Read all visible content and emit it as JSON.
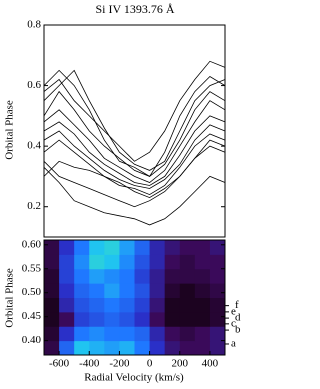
{
  "chart_data": [
    {
      "type": "line",
      "title": "Si IV     1393.76 Å",
      "ylabel": "Orbital Phase",
      "x": [
        -700,
        -600,
        -500,
        -400,
        -300,
        -200,
        -100,
        0,
        100,
        200,
        300,
        400,
        500
      ],
      "xlim": [
        -700,
        500
      ],
      "ylim": [
        0.1,
        0.8
      ],
      "yticks": [
        0.2,
        0.4,
        0.6,
        0.8
      ],
      "color": "#000000",
      "series": [
        {
          "values": [
            0.58,
            0.62,
            0.55,
            0.5,
            0.45,
            0.4,
            0.35,
            0.38,
            0.45,
            0.55,
            0.62,
            0.68,
            0.66
          ]
        },
        {
          "values": [
            0.6,
            0.65,
            0.6,
            0.52,
            0.42,
            0.35,
            0.33,
            0.3,
            0.38,
            0.5,
            0.58,
            0.63,
            0.6
          ]
        },
        {
          "values": [
            0.5,
            0.58,
            0.52,
            0.45,
            0.4,
            0.36,
            0.32,
            0.3,
            0.34,
            0.42,
            0.52,
            0.58,
            0.55
          ]
        },
        {
          "values": [
            0.48,
            0.52,
            0.47,
            0.42,
            0.36,
            0.33,
            0.3,
            0.28,
            0.32,
            0.4,
            0.48,
            0.55,
            0.52
          ]
        },
        {
          "values": [
            0.45,
            0.48,
            0.44,
            0.38,
            0.34,
            0.31,
            0.28,
            0.27,
            0.3,
            0.37,
            0.45,
            0.5,
            0.48
          ]
        },
        {
          "values": [
            0.42,
            0.45,
            0.4,
            0.36,
            0.32,
            0.29,
            0.27,
            0.26,
            0.29,
            0.34,
            0.42,
            0.47,
            0.45
          ]
        },
        {
          "values": [
            0.38,
            0.42,
            0.38,
            0.34,
            0.3,
            0.27,
            0.26,
            0.24,
            0.27,
            0.33,
            0.4,
            0.44,
            0.42
          ]
        },
        {
          "values": [
            0.35,
            0.3,
            0.28,
            0.26,
            0.24,
            0.22,
            0.2,
            0.22,
            0.25,
            0.3,
            0.36,
            0.4,
            0.38
          ]
        },
        {
          "values": [
            0.33,
            0.28,
            0.22,
            0.2,
            0.18,
            0.17,
            0.16,
            0.14,
            0.16,
            0.2,
            0.25,
            0.3,
            0.28
          ]
        },
        {
          "values": [
            0.55,
            0.6,
            0.65,
            0.55,
            0.46,
            0.38,
            0.34,
            0.32,
            0.35,
            0.45,
            0.55,
            0.6,
            0.62
          ]
        },
        {
          "values": [
            0.3,
            0.35,
            0.33,
            0.32,
            0.3,
            0.28,
            0.25,
            0.23,
            0.26,
            0.3,
            0.36,
            0.42,
            0.4
          ]
        }
      ]
    },
    {
      "type": "heatmap",
      "ylabel": "Orbital Phase",
      "xlabel": "Radial Velocity (km/s)",
      "xlim": [
        -700,
        500
      ],
      "ylim": [
        0.37,
        0.61
      ],
      "xticks": [
        -600,
        -400,
        -200,
        0,
        200,
        400
      ],
      "yticks": [
        {
          "value": 0.4,
          "label": "0.40"
        },
        {
          "value": 0.45,
          "label": "0.45"
        },
        {
          "value": 0.5,
          "label": "0.50"
        },
        {
          "value": 0.55,
          "label": "0.55"
        },
        {
          "value": 0.6,
          "label": "0.60"
        }
      ],
      "xbins": [
        -700,
        -600,
        -500,
        -400,
        -300,
        -200,
        -100,
        0,
        100,
        200,
        300,
        400,
        500
      ],
      "ybins": [
        0.37,
        0.4,
        0.43,
        0.46,
        0.49,
        0.52,
        0.55,
        0.58,
        0.61
      ],
      "colormap": [
        "#12000c",
        "#3a0a5a",
        "#2a30c8",
        "#1f78ff",
        "#20c4f0",
        "#48f0a8"
      ],
      "z": [
        [
          0.15,
          0.55,
          0.8,
          0.75,
          0.7,
          0.75,
          0.6,
          0.4,
          0.25,
          0.2,
          0.2,
          0.25
        ],
        [
          0.1,
          0.4,
          0.6,
          0.65,
          0.6,
          0.6,
          0.55,
          0.35,
          0.2,
          0.15,
          0.2,
          0.25
        ],
        [
          0.05,
          0.2,
          0.45,
          0.5,
          0.55,
          0.5,
          0.4,
          0.2,
          0.05,
          0.05,
          0.05,
          0.1
        ],
        [
          0.05,
          0.35,
          0.5,
          0.55,
          0.6,
          0.55,
          0.45,
          0.25,
          0.05,
          0.05,
          0.05,
          0.1
        ],
        [
          0.1,
          0.4,
          0.55,
          0.6,
          0.7,
          0.6,
          0.5,
          0.3,
          0.1,
          0.05,
          0.1,
          0.15
        ],
        [
          0.1,
          0.45,
          0.6,
          0.7,
          0.65,
          0.6,
          0.45,
          0.3,
          0.15,
          0.15,
          0.15,
          0.2
        ],
        [
          0.15,
          0.45,
          0.65,
          0.85,
          0.8,
          0.65,
          0.5,
          0.35,
          0.2,
          0.15,
          0.2,
          0.2
        ],
        [
          0.15,
          0.4,
          0.6,
          0.8,
          0.85,
          0.7,
          0.55,
          0.35,
          0.25,
          0.2,
          0.2,
          0.25
        ]
      ],
      "annotations": [
        {
          "text": "a",
          "y": 0.393
        },
        {
          "text": "b",
          "y": 0.422
        },
        {
          "text": "c",
          "y": 0.435
        },
        {
          "text": "d",
          "y": 0.447
        },
        {
          "text": "e",
          "y": 0.46
        },
        {
          "text": "f",
          "y": 0.473
        }
      ]
    }
  ]
}
